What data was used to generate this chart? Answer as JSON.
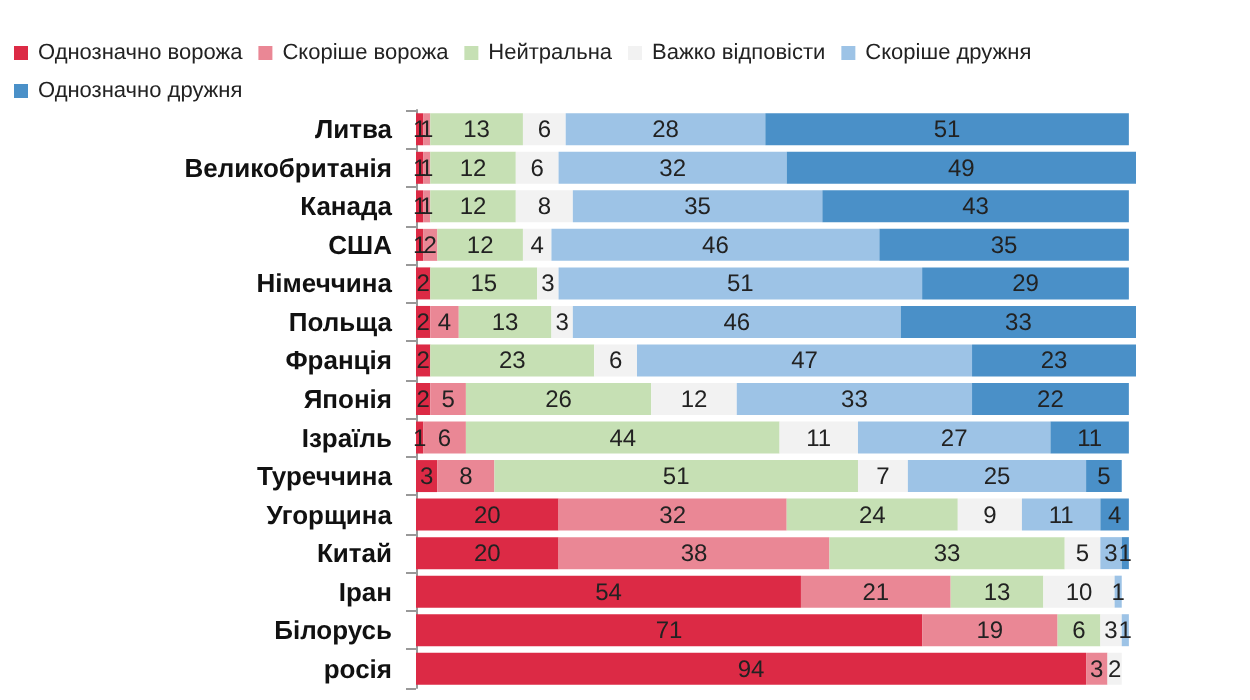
{
  "chart_data": {
    "type": "bar",
    "orientation": "horizontal",
    "stacked": true,
    "data_labels": true,
    "legend": "top left",
    "categories": [
      "Литва",
      "Великобританія",
      "Канада",
      "США",
      "Німеччина",
      "Польща",
      "Франція",
      "Японія",
      "Ізраїль",
      "Туреччина",
      "Угорщина",
      "Китай",
      "Іран",
      "Білорусь",
      "росія"
    ],
    "series": [
      {
        "name": "Однозначно ворожа",
        "color": "#dc2a45",
        "values": [
          1,
          1,
          1,
          1,
          2,
          2,
          2,
          2,
          1,
          3,
          20,
          20,
          54,
          71,
          94
        ]
      },
      {
        "name": "Скоріше ворожа",
        "color": "#ea8795",
        "values": [
          1,
          1,
          1,
          2,
          null,
          4,
          null,
          5,
          6,
          8,
          32,
          38,
          21,
          19,
          3
        ]
      },
      {
        "name": "Нейтральна",
        "color": "#c6e0b4",
        "values": [
          13,
          12,
          12,
          12,
          15,
          13,
          23,
          26,
          44,
          51,
          24,
          33,
          13,
          6,
          null
        ]
      },
      {
        "name": "Важко відповісти",
        "color": "#f2f2f2",
        "values": [
          6,
          6,
          8,
          4,
          3,
          3,
          6,
          12,
          11,
          7,
          9,
          5,
          10,
          3,
          2
        ]
      },
      {
        "name": "Скоріше дружня",
        "color": "#9dc3e6",
        "values": [
          28,
          32,
          35,
          46,
          51,
          46,
          47,
          33,
          27,
          25,
          11,
          3,
          1,
          1,
          null
        ]
      },
      {
        "name": "Однозначно дружня",
        "color": "#4a90c8",
        "values": [
          51,
          49,
          43,
          35,
          29,
          33,
          23,
          22,
          11,
          5,
          4,
          1,
          null,
          null,
          null
        ]
      }
    ]
  }
}
